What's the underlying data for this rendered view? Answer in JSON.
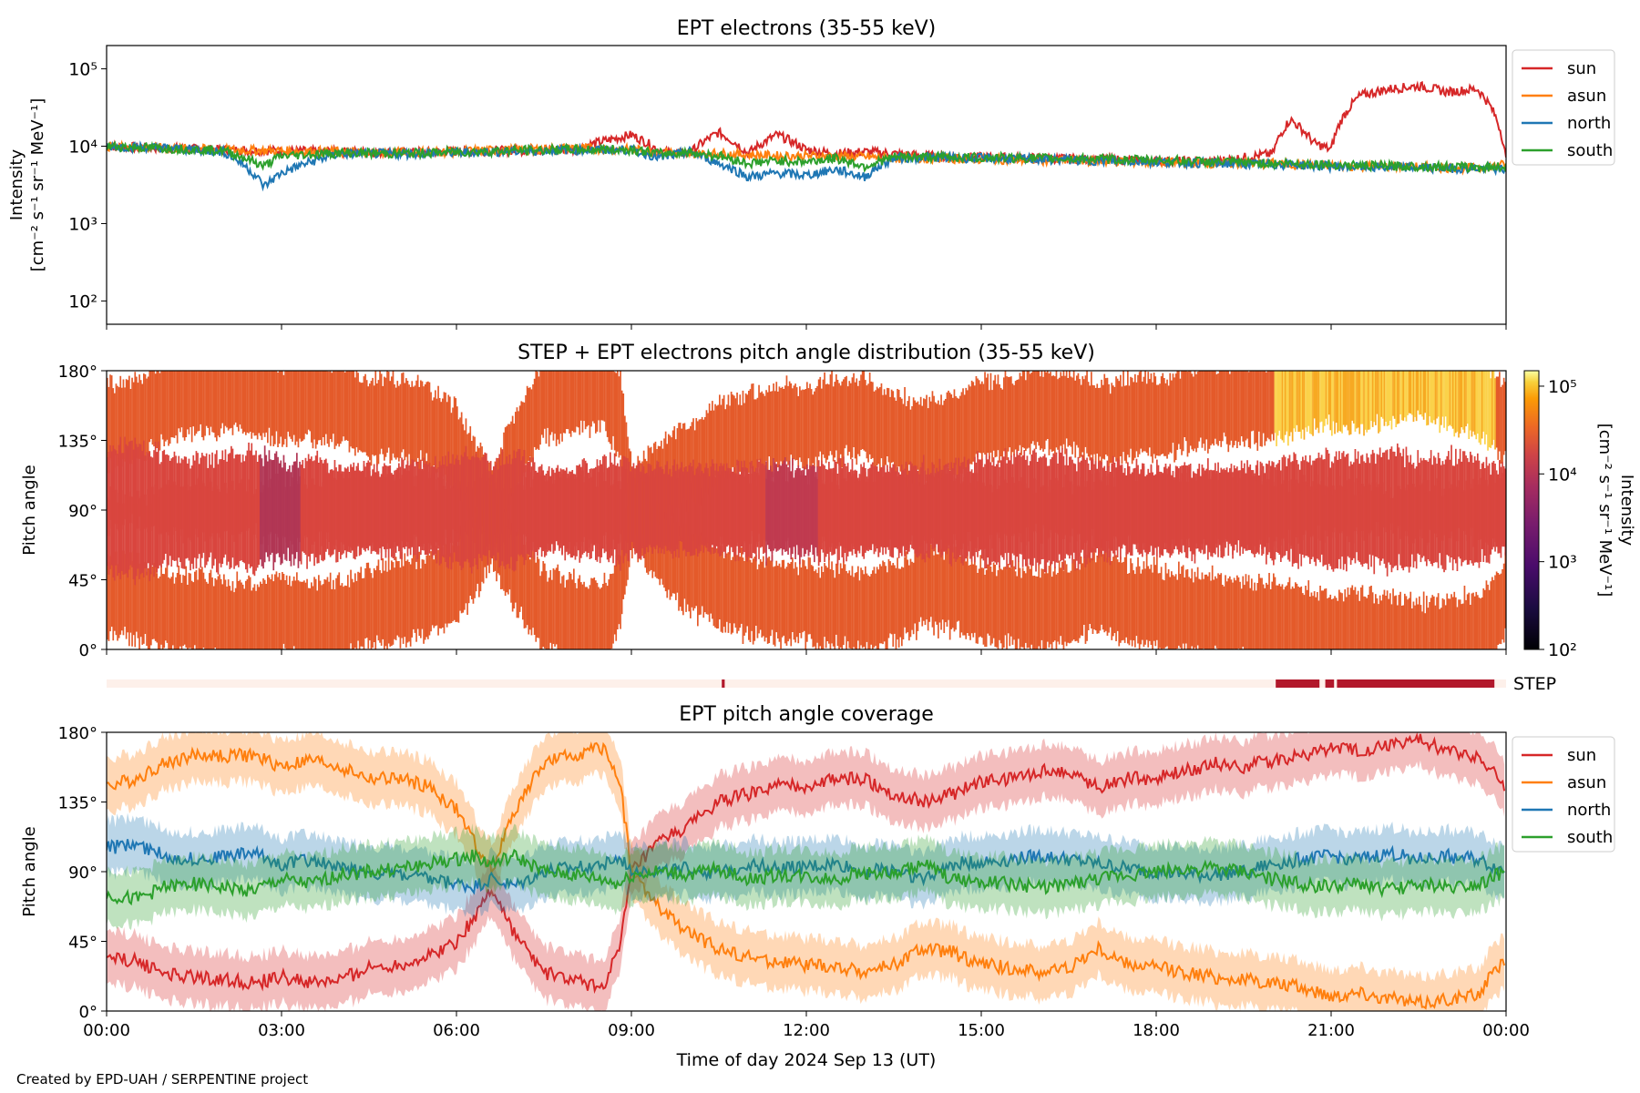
{
  "credit": "Created by EPD-UAH / SERPENTINE project",
  "xlabel": "Time of day 2024 Sep 13 (UT)",
  "xticks": [
    "00:00",
    "03:00",
    "06:00",
    "09:00",
    "12:00",
    "15:00",
    "18:00",
    "21:00",
    "00:00"
  ],
  "series_colors": {
    "sun": "#d62728",
    "asun": "#ff7f0e",
    "north": "#1f77b4",
    "south": "#2ca02c"
  },
  "chart_data": [
    {
      "id": "intensity",
      "type": "line",
      "title": "EPT electrons (35-55 keV)",
      "ylabel_line1": "Intensity",
      "ylabel_line2": "[cm⁻² s⁻¹ sr⁻¹ MeV⁻¹]",
      "yscale": "log",
      "ylim": [
        50,
        200000
      ],
      "yticks": [
        "10²",
        "10³",
        "10⁴",
        "10⁵"
      ],
      "legend_position": "right-outside",
      "x_unit": "hours of day",
      "x": [
        0,
        1,
        2,
        2.7,
        3,
        4,
        5,
        6,
        7,
        8,
        9,
        9.5,
        10,
        10.5,
        11,
        11.5,
        12,
        12.5,
        13,
        13.5,
        14,
        15,
        16,
        17,
        18,
        19,
        20,
        20.3,
        20.7,
        21,
        21.5,
        22,
        22.5,
        23,
        23.5,
        24
      ],
      "series": [
        {
          "name": "sun",
          "values": [
            10000,
            9500,
            9000,
            8800,
            8700,
            8500,
            8300,
            8500,
            8800,
            9000,
            14000,
            8500,
            8000,
            15000,
            8000,
            14000,
            9000,
            8000,
            8500,
            8000,
            7500,
            7200,
            7000,
            6800,
            6500,
            6300,
            8000,
            22000,
            11000,
            9000,
            45000,
            55000,
            60000,
            50000,
            55000,
            6500
          ]
        },
        {
          "name": "asun",
          "values": [
            10000,
            9500,
            9000,
            8800,
            8700,
            8500,
            8300,
            8600,
            9000,
            9500,
            9000,
            8500,
            8000,
            8000,
            7800,
            7500,
            7500,
            7400,
            7300,
            7000,
            7000,
            6800,
            6600,
            6400,
            6200,
            6000,
            6000,
            5800,
            5700,
            5600,
            5500,
            5500,
            5400,
            5300,
            5200,
            5800
          ]
        },
        {
          "name": "north",
          "values": [
            10000,
            9500,
            8500,
            3000,
            4500,
            8000,
            8000,
            8300,
            8600,
            9000,
            9000,
            7000,
            8500,
            6000,
            4000,
            4500,
            4200,
            5000,
            4000,
            7000,
            7200,
            7000,
            6800,
            6500,
            6300,
            6000,
            5800,
            5800,
            5600,
            5500,
            5400,
            5300,
            5300,
            5200,
            5200,
            5000
          ]
        },
        {
          "name": "south",
          "values": [
            10000,
            9400,
            8800,
            5500,
            7500,
            8200,
            8000,
            8400,
            8800,
            9100,
            9000,
            8000,
            8300,
            7500,
            6000,
            6500,
            6300,
            7000,
            5500,
            7200,
            7300,
            7100,
            7000,
            6800,
            6600,
            6300,
            6000,
            6000,
            5900,
            5800,
            5600,
            5500,
            5500,
            5400,
            5300,
            5500
          ]
        }
      ]
    },
    {
      "id": "pad",
      "type": "heatmap",
      "title": "STEP + EPT electrons pitch angle distribution (35-55 keV)",
      "ylabel": "Pitch angle",
      "ylim": [
        0,
        180
      ],
      "yticks": [
        "0°",
        "45°",
        "90°",
        "135°",
        "180°"
      ],
      "colorbar": {
        "label": "Intensity",
        "unit": "[cm⁻² s⁻¹ sr⁻¹ MeV⁻¹]",
        "scale": "log",
        "range": [
          100,
          150000
        ],
        "ticks": [
          "10²",
          "10³",
          "10⁴",
          "10⁵"
        ],
        "colormap": "inferno"
      }
    },
    {
      "id": "step_flag",
      "type": "bar",
      "label": "STEP",
      "x_unit": "hours of day",
      "active_intervals": [
        [
          10.55,
          10.6
        ],
        [
          20.05,
          20.8
        ],
        [
          20.9,
          21.05
        ],
        [
          21.1,
          23.8
        ]
      ],
      "active_color": "#b2182b",
      "inactive_color": "#fdf0ea"
    },
    {
      "id": "coverage",
      "type": "line",
      "title": "EPT pitch angle coverage",
      "ylabel": "Pitch angle",
      "ylim": [
        0,
        180
      ],
      "yticks": [
        "0°",
        "45°",
        "90°",
        "135°",
        "180°"
      ],
      "legend_position": "right-outside",
      "x_unit": "hours of day",
      "x": [
        0,
        0.5,
        1,
        1.5,
        2,
        2.5,
        3,
        3.5,
        4,
        4.5,
        5,
        5.5,
        6,
        6.3,
        6.6,
        7,
        7.5,
        8,
        8.5,
        8.8,
        9,
        9.5,
        10,
        10.5,
        11,
        11.5,
        12,
        12.5,
        13,
        13.5,
        14,
        14.5,
        15,
        15.5,
        16,
        16.5,
        17,
        17.5,
        18,
        18.5,
        19,
        19.5,
        20,
        20.5,
        21,
        21.5,
        22,
        22.5,
        23,
        23.5,
        24
      ],
      "series": [
        {
          "name": "sun",
          "values": [
            35,
            32,
            25,
            22,
            20,
            18,
            22,
            18,
            20,
            28,
            30,
            35,
            45,
            60,
            80,
            50,
            25,
            20,
            15,
            40,
            90,
            110,
            120,
            135,
            140,
            145,
            145,
            150,
            150,
            140,
            135,
            140,
            148,
            150,
            155,
            155,
            145,
            150,
            150,
            155,
            160,
            158,
            162,
            165,
            170,
            168,
            172,
            175,
            168,
            165,
            145
          ]
        },
        {
          "name": "asun",
          "values": [
            145,
            150,
            160,
            165,
            165,
            165,
            158,
            162,
            158,
            150,
            150,
            145,
            130,
            110,
            90,
            130,
            160,
            165,
            170,
            150,
            90,
            65,
            50,
            40,
            35,
            32,
            30,
            28,
            25,
            30,
            40,
            38,
            30,
            28,
            25,
            28,
            40,
            30,
            28,
            25,
            22,
            20,
            18,
            15,
            10,
            12,
            8,
            5,
            8,
            10,
            35
          ]
        },
        {
          "name": "north",
          "values": [
            105,
            108,
            100,
            98,
            100,
            102,
            95,
            98,
            92,
            90,
            88,
            85,
            82,
            80,
            85,
            80,
            90,
            92,
            95,
            98,
            92,
            90,
            92,
            88,
            95,
            92,
            93,
            95,
            90,
            92,
            85,
            95,
            96,
            98,
            100,
            98,
            95,
            92,
            90,
            88,
            88,
            90,
            95,
            98,
            100,
            98,
            102,
            98,
            100,
            98,
            90
          ]
        },
        {
          "name": "south",
          "values": [
            75,
            72,
            80,
            82,
            80,
            78,
            85,
            82,
            88,
            90,
            92,
            95,
            98,
            100,
            95,
            100,
            90,
            88,
            85,
            82,
            88,
            90,
            88,
            92,
            85,
            88,
            87,
            85,
            90,
            88,
            95,
            85,
            84,
            82,
            80,
            82,
            85,
            88,
            90,
            92,
            92,
            90,
            85,
            82,
            80,
            82,
            78,
            82,
            80,
            82,
            90
          ]
        }
      ]
    }
  ]
}
